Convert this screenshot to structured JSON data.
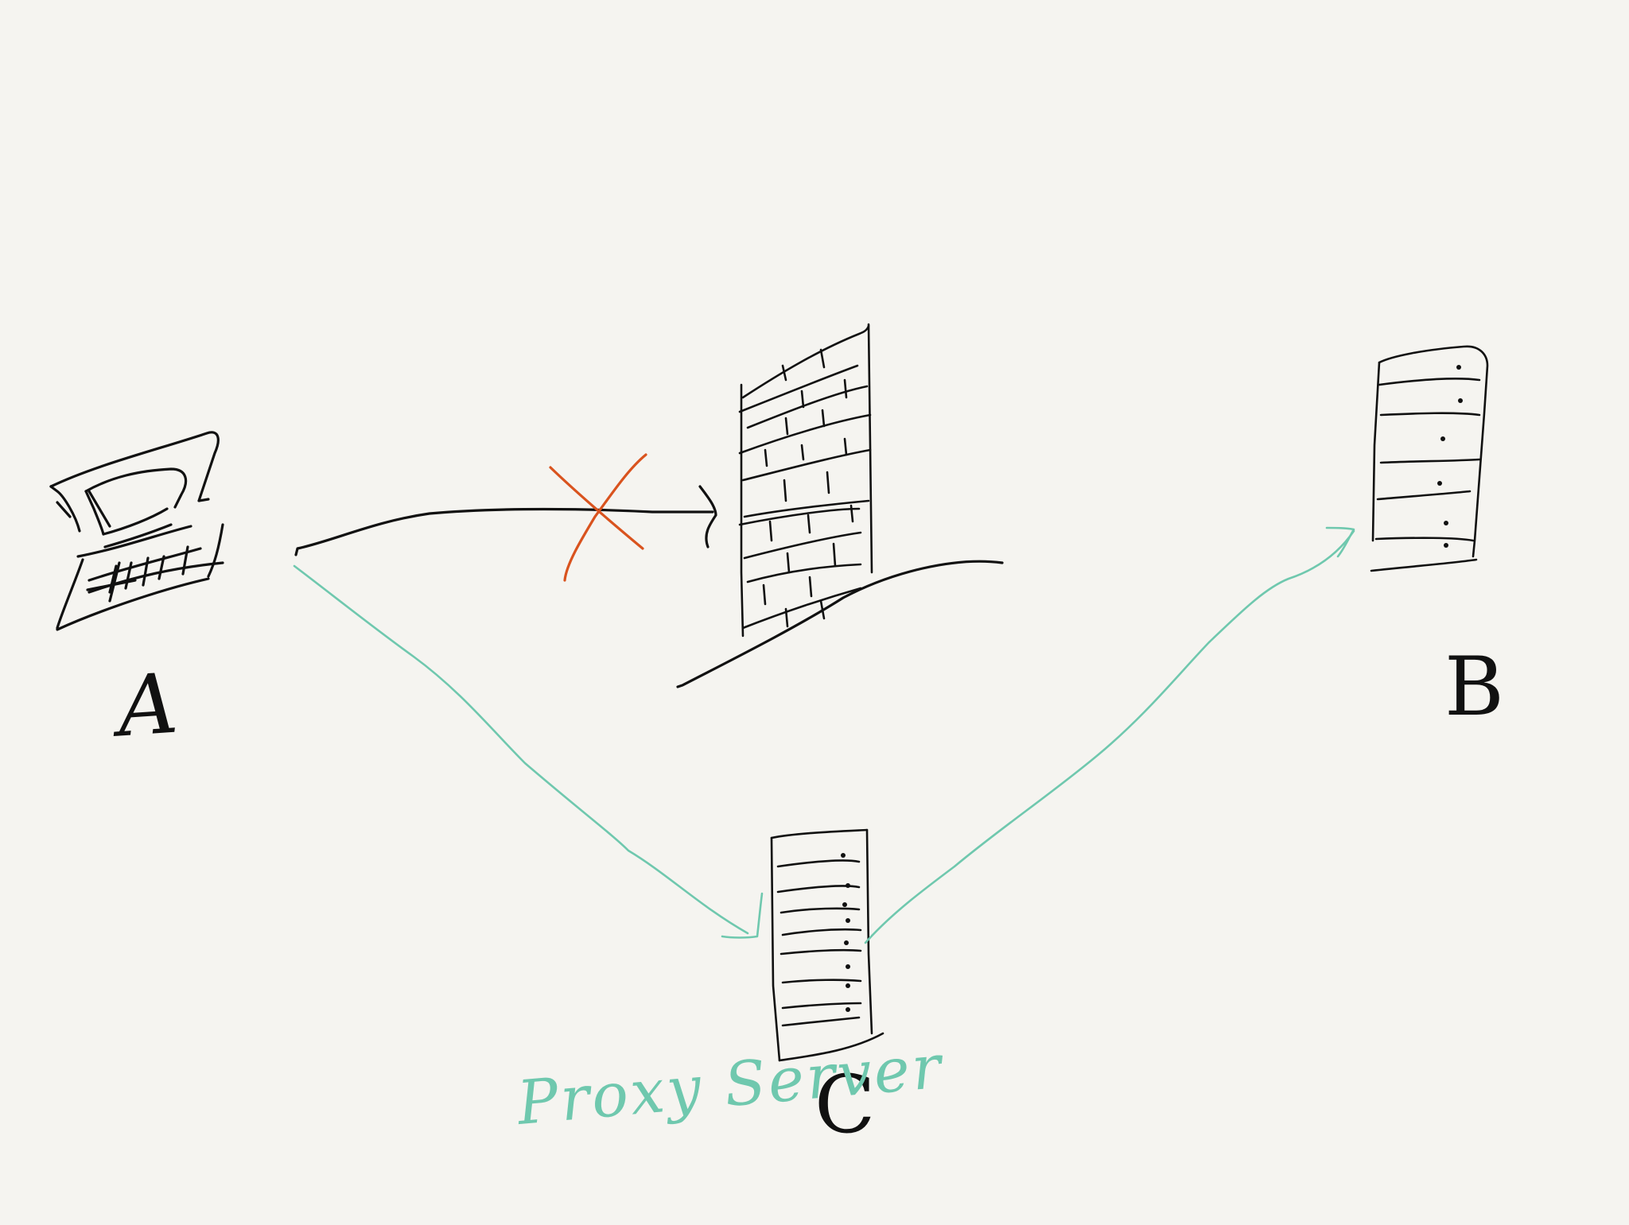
{
  "nodes": {
    "a_label": "A",
    "b_label": "B",
    "c_label": "C",
    "proxy_label": "Proxy Server"
  },
  "icons": {
    "computer": "laptop-icon",
    "firewall": "brick-wall-icon",
    "server_b": "server-rack-icon",
    "server_c": "server-rack-icon",
    "blocked": "x-mark-icon"
  },
  "colors": {
    "ink": "#111111",
    "proxy_path": "#6fc8ae",
    "blocked_mark": "#d9531e",
    "background": "#f5f4f0"
  }
}
